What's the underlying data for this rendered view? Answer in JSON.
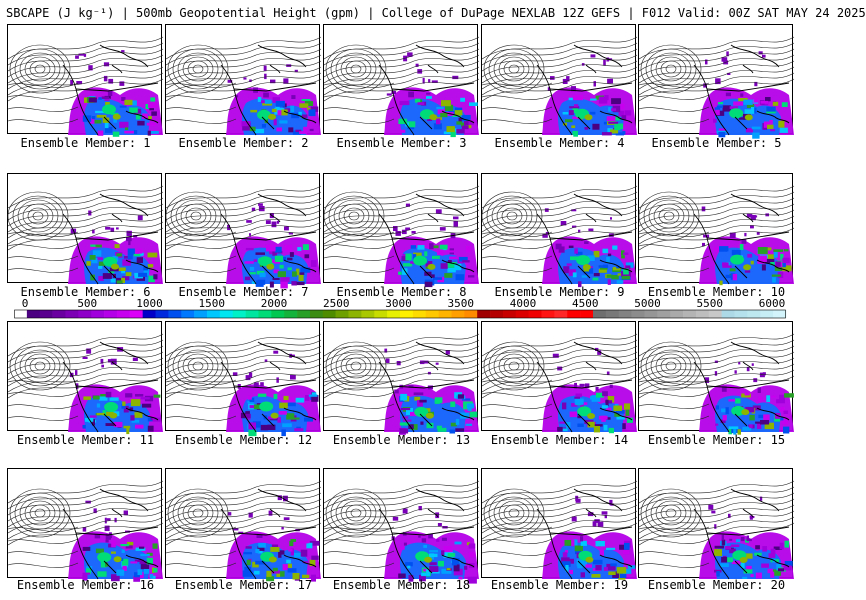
{
  "header": {
    "title": "SBCAPE (J kg⁻¹) | 500mb Geopotential Height (gpm) | College of DuPage NEXLAB 12Z GEFS | F012 Valid: 00Z SAT MAY 24 2025"
  },
  "panels": [
    {
      "label": "Ensemble Member: 1"
    },
    {
      "label": "Ensemble Member: 2"
    },
    {
      "label": "Ensemble Member: 3"
    },
    {
      "label": "Ensemble Member: 4"
    },
    {
      "label": "Ensemble Member: 5"
    },
    {
      "label": "Ensemble Member: 6"
    },
    {
      "label": "Ensemble Member: 7"
    },
    {
      "label": "Ensemble Member: 8"
    },
    {
      "label": "Ensemble Member: 9"
    },
    {
      "label": "Ensemble Member: 10"
    },
    {
      "label": "Ensemble Member: 11"
    },
    {
      "label": "Ensemble Member: 12"
    },
    {
      "label": "Ensemble Member: 13"
    },
    {
      "label": "Ensemble Member: 14"
    },
    {
      "label": "Ensemble Member: 15"
    },
    {
      "label": "Ensemble Member: 16"
    },
    {
      "label": "Ensemble Member: 17"
    },
    {
      "label": "Ensemble Member: 18"
    },
    {
      "label": "Ensemble Member: 19"
    },
    {
      "label": "Ensemble Member: 20"
    }
  ],
  "colorbar": {
    "ticks": [
      "0",
      "500",
      "1000",
      "1500",
      "2000",
      "2500",
      "3000",
      "3500",
      "4000",
      "4500",
      "5000",
      "5500",
      "6000"
    ],
    "colors": [
      "#ffffff",
      "#4b0082",
      "#5a008f",
      "#6a00a0",
      "#7c00b4",
      "#8e00c8",
      "#a000dc",
      "#b400e8",
      "#c800f0",
      "#dc00f8",
      "#0000c8",
      "#0028dc",
      "#0050f0",
      "#0078ff",
      "#00a0ff",
      "#00c8ff",
      "#00e6f0",
      "#00f0c8",
      "#00e6a0",
      "#00dc78",
      "#00c850",
      "#14b43c",
      "#28a028",
      "#3c8c14",
      "#508c00",
      "#6ea000",
      "#8cb400",
      "#aac800",
      "#c8dc00",
      "#e6f000",
      "#fff000",
      "#ffdc00",
      "#ffc800",
      "#ffb400",
      "#ffa000",
      "#ff8c00",
      "#a00000",
      "#b40000",
      "#c80000",
      "#dc0000",
      "#f00000",
      "#ff1414",
      "#ff2828",
      "#ff0000",
      "#ff0000",
      "#6e6e6e",
      "#787878",
      "#828282",
      "#8c8c8c",
      "#969696",
      "#a0a0a0",
      "#aaaaaa",
      "#b4b4b4",
      "#bebebe",
      "#c8c8c8",
      "#add8e6",
      "#b4e1eb",
      "#bee8f0",
      "#c8eef5",
      "#d2f4fa"
    ]
  }
}
